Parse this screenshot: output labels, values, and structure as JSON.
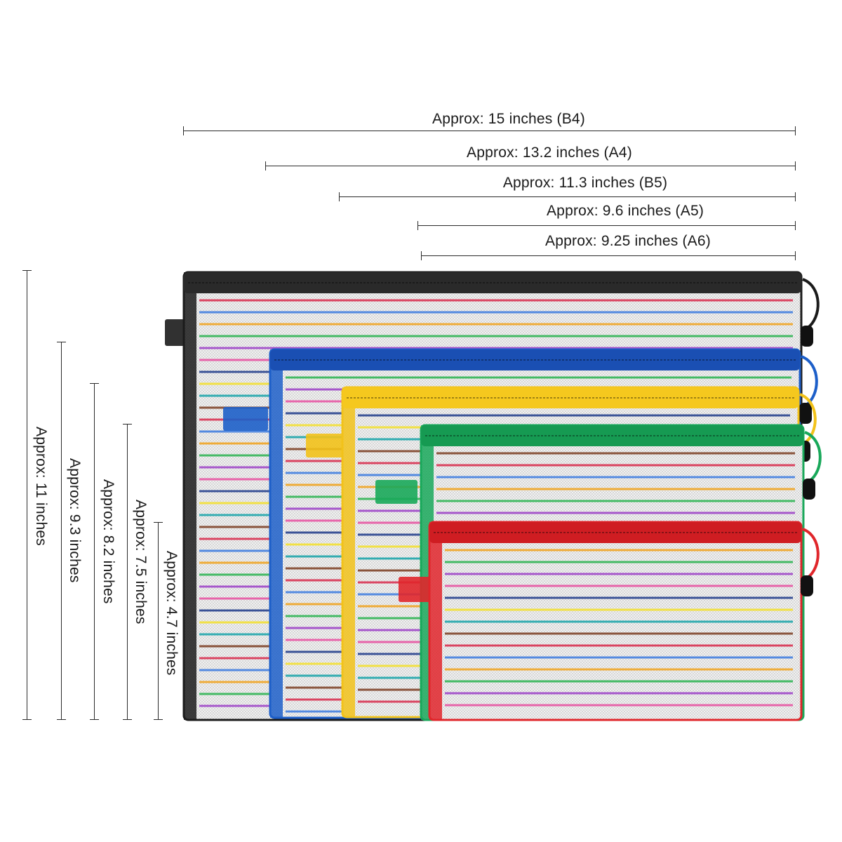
{
  "widths": [
    {
      "label": "Approx: 15 inches (B4)"
    },
    {
      "label": "Approx: 13.2 inches (A4)"
    },
    {
      "label": "Approx: 11.3 inches (B5)"
    },
    {
      "label": "Approx: 9.6 inches (A5)"
    },
    {
      "label": "Approx: 9.25 inches (A6)"
    }
  ],
  "heights": [
    {
      "label": "Approx: 11 inches"
    },
    {
      "label": "Approx: 9.3 inches"
    },
    {
      "label": "Approx: 8.2 inches"
    },
    {
      "label": "Approx: 7.5 inches"
    },
    {
      "label": "Approx: 4.7 inches"
    }
  ],
  "bags": [
    {
      "name": "black",
      "trim": "#1b1b1b",
      "zipper": "#2a2a2a"
    },
    {
      "name": "blue",
      "trim": "#1d5fc9",
      "zipper": "#1a4fb3"
    },
    {
      "name": "yellow",
      "trim": "#f2c21a",
      "zipper": "#f5c81e"
    },
    {
      "name": "green",
      "trim": "#19a85a",
      "zipper": "#169a52"
    },
    {
      "name": "red",
      "trim": "#e0262b",
      "zipper": "#cf1d22"
    }
  ],
  "stripe_colors": [
    "#d8284a",
    "#3b7be0",
    "#f0a21a",
    "#29b34f",
    "#9b3fc7",
    "#e84fa0",
    "#1e3a8a",
    "#f4e12a",
    "#14a3a8",
    "#7a3b1f"
  ]
}
